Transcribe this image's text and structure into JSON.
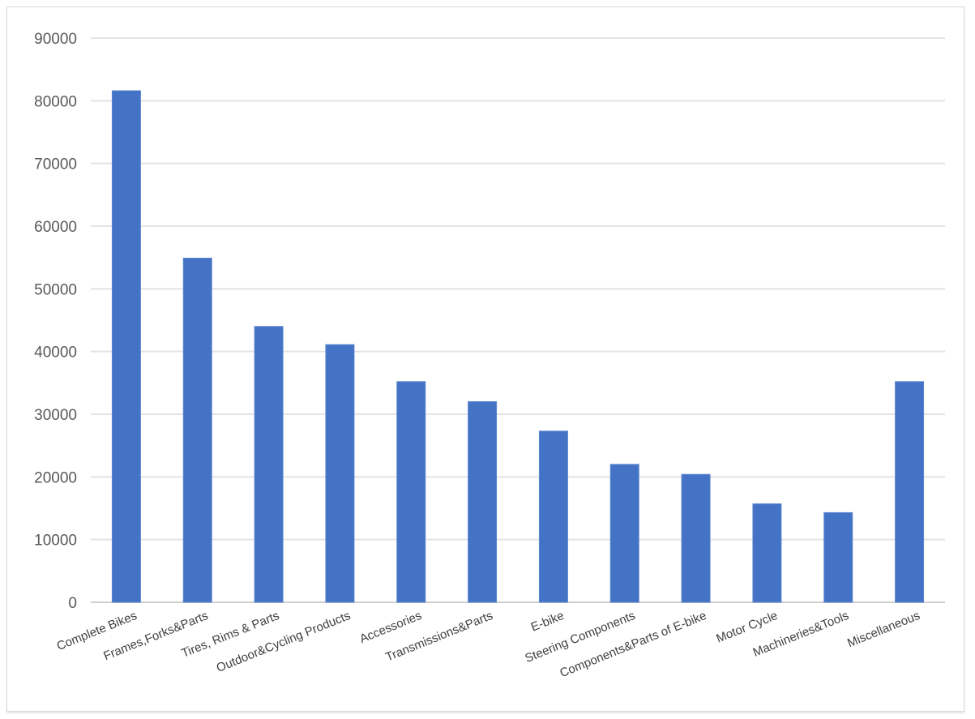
{
  "chart_data": {
    "type": "bar",
    "title": "",
    "xlabel": "",
    "ylabel": "",
    "ylim": [
      0,
      90000
    ],
    "yticks": [
      0,
      10000,
      20000,
      30000,
      40000,
      50000,
      60000,
      70000,
      80000,
      90000
    ],
    "grid": true,
    "legend": "none",
    "bar_color": "#4472C4",
    "categories": [
      "Complete Bikes",
      "Frames,Forks&Parts",
      "Tires, Rims & Parts",
      "Outdoor&Cycling Products",
      "Accessories",
      "Transmissions&Parts",
      "E-bike",
      "Steering Components",
      "Components&Parts of E-bike",
      "Motor Cycle",
      "Machineries&Tools",
      "Miscellaneous"
    ],
    "values": [
      81600,
      54900,
      44000,
      41100,
      35200,
      32000,
      27300,
      22000,
      20400,
      15700,
      14300,
      35200
    ]
  }
}
